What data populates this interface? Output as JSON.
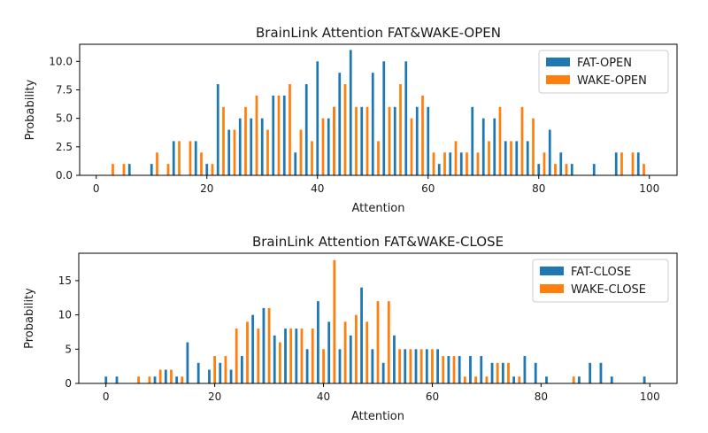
{
  "chart_data": [
    {
      "type": "bar",
      "title": "BrainLink Attention FAT&WAKE-OPEN",
      "xlabel": "Attention",
      "ylabel": "Probability",
      "xlim": [
        -3,
        105
      ],
      "ylim": [
        0,
        11.5
      ],
      "xticks": [
        "0",
        "20",
        "40",
        "60",
        "80",
        "100"
      ],
      "yticks": [
        "0.0",
        "2.5",
        "5.0",
        "7.5",
        "10.0"
      ],
      "legend_position": "top-right",
      "series": [
        {
          "name": "FAT-OPEN",
          "color": "#1f77b4",
          "points": [
            [
              6,
              1
            ],
            [
              10,
              1
            ],
            [
              14,
              3
            ],
            [
              18,
              3
            ],
            [
              20,
              1
            ],
            [
              22,
              8
            ],
            [
              24,
              4
            ],
            [
              26,
              5
            ],
            [
              28,
              5
            ],
            [
              30,
              5
            ],
            [
              32,
              7
            ],
            [
              34,
              7
            ],
            [
              36,
              2
            ],
            [
              38,
              8
            ],
            [
              40,
              10
            ],
            [
              42,
              5
            ],
            [
              43,
              6
            ],
            [
              44,
              9
            ],
            [
              46,
              11
            ],
            [
              48,
              6
            ],
            [
              50,
              9
            ],
            [
              52,
              10
            ],
            [
              54,
              6
            ],
            [
              56,
              10
            ],
            [
              58,
              6
            ],
            [
              60,
              6
            ],
            [
              62,
              1
            ],
            [
              64,
              2
            ],
            [
              66,
              2
            ],
            [
              68,
              6
            ],
            [
              70,
              5
            ],
            [
              72,
              5
            ],
            [
              74,
              3
            ],
            [
              76,
              3
            ],
            [
              78,
              3
            ],
            [
              80,
              1
            ],
            [
              82,
              4
            ],
            [
              84,
              2
            ],
            [
              86,
              1
            ],
            [
              90,
              1
            ],
            [
              94,
              2
            ],
            [
              98,
              2
            ]
          ]
        },
        {
          "name": "WAKE-OPEN",
          "color": "#ff7f0e",
          "points": [
            [
              3,
              1
            ],
            [
              5,
              1
            ],
            [
              11,
              2
            ],
            [
              13,
              1
            ],
            [
              15,
              3
            ],
            [
              17,
              3
            ],
            [
              19,
              2
            ],
            [
              21,
              1
            ],
            [
              23,
              6
            ],
            [
              25,
              4
            ],
            [
              27,
              6
            ],
            [
              29,
              7
            ],
            [
              31,
              4
            ],
            [
              33,
              7
            ],
            [
              35,
              8
            ],
            [
              37,
              4
            ],
            [
              39,
              3
            ],
            [
              41,
              5
            ],
            [
              43,
              6
            ],
            [
              45,
              8
            ],
            [
              47,
              6
            ],
            [
              49,
              6
            ],
            [
              51,
              3
            ],
            [
              53,
              6
            ],
            [
              55,
              8
            ],
            [
              57,
              5
            ],
            [
              59,
              7
            ],
            [
              61,
              2
            ],
            [
              63,
              2
            ],
            [
              65,
              3
            ],
            [
              67,
              2
            ],
            [
              69,
              2
            ],
            [
              71,
              3
            ],
            [
              73,
              6
            ],
            [
              75,
              3
            ],
            [
              77,
              6
            ],
            [
              79,
              5
            ],
            [
              81,
              2
            ],
            [
              83,
              1
            ],
            [
              85,
              1
            ],
            [
              95,
              2
            ],
            [
              97,
              2
            ],
            [
              99,
              1
            ]
          ]
        }
      ]
    },
    {
      "type": "bar",
      "title": "BrainLink Attention FAT&WAKE-CLOSE",
      "xlabel": "Attention",
      "ylabel": "Probability",
      "xlim": [
        -5,
        105
      ],
      "ylim": [
        0,
        19
      ],
      "xticks": [
        "0",
        "20",
        "40",
        "60",
        "80",
        "100"
      ],
      "yticks": [
        "0",
        "5",
        "10",
        "15"
      ],
      "legend_position": "top-right",
      "series": [
        {
          "name": "FAT-CLOSE",
          "color": "#1f77b4",
          "points": [
            [
              0,
              1
            ],
            [
              2,
              1
            ],
            [
              9,
              1
            ],
            [
              11,
              2
            ],
            [
              13,
              1
            ],
            [
              15,
              6
            ],
            [
              17,
              3
            ],
            [
              19,
              2
            ],
            [
              21,
              3
            ],
            [
              23,
              2
            ],
            [
              25,
              4
            ],
            [
              27,
              10
            ],
            [
              29,
              11
            ],
            [
              31,
              7
            ],
            [
              33,
              8
            ],
            [
              35,
              8
            ],
            [
              37,
              5
            ],
            [
              39,
              12
            ],
            [
              41,
              9
            ],
            [
              43,
              5
            ],
            [
              45,
              7
            ],
            [
              47,
              14
            ],
            [
              49,
              5
            ],
            [
              51,
              3
            ],
            [
              53,
              7
            ],
            [
              55,
              5
            ],
            [
              57,
              5
            ],
            [
              59,
              5
            ],
            [
              61,
              5
            ],
            [
              63,
              4
            ],
            [
              65,
              4
            ],
            [
              67,
              4
            ],
            [
              69,
              4
            ],
            [
              71,
              3
            ],
            [
              73,
              3
            ],
            [
              75,
              1
            ],
            [
              77,
              4
            ],
            [
              79,
              3
            ],
            [
              81,
              1
            ],
            [
              87,
              1
            ],
            [
              89,
              3
            ],
            [
              91,
              3
            ],
            [
              93,
              1
            ],
            [
              99,
              1
            ]
          ]
        },
        {
          "name": "WAKE-CLOSE",
          "color": "#ff7f0e",
          "points": [
            [
              6,
              1
            ],
            [
              8,
              1
            ],
            [
              10,
              2
            ],
            [
              12,
              2
            ],
            [
              14,
              1
            ],
            [
              20,
              4
            ],
            [
              22,
              4
            ],
            [
              24,
              8
            ],
            [
              26,
              9
            ],
            [
              28,
              8
            ],
            [
              30,
              11
            ],
            [
              32,
              6
            ],
            [
              34,
              8
            ],
            [
              36,
              8
            ],
            [
              38,
              8
            ],
            [
              40,
              5
            ],
            [
              42,
              18
            ],
            [
              44,
              9
            ],
            [
              46,
              10
            ],
            [
              48,
              9
            ],
            [
              50,
              12
            ],
            [
              52,
              12
            ],
            [
              54,
              5
            ],
            [
              56,
              5
            ],
            [
              58,
              5
            ],
            [
              60,
              5
            ],
            [
              62,
              4
            ],
            [
              64,
              4
            ],
            [
              66,
              1
            ],
            [
              68,
              1
            ],
            [
              70,
              1
            ],
            [
              72,
              3
            ],
            [
              74,
              3
            ],
            [
              76,
              1
            ],
            [
              86,
              1
            ]
          ]
        }
      ]
    }
  ]
}
